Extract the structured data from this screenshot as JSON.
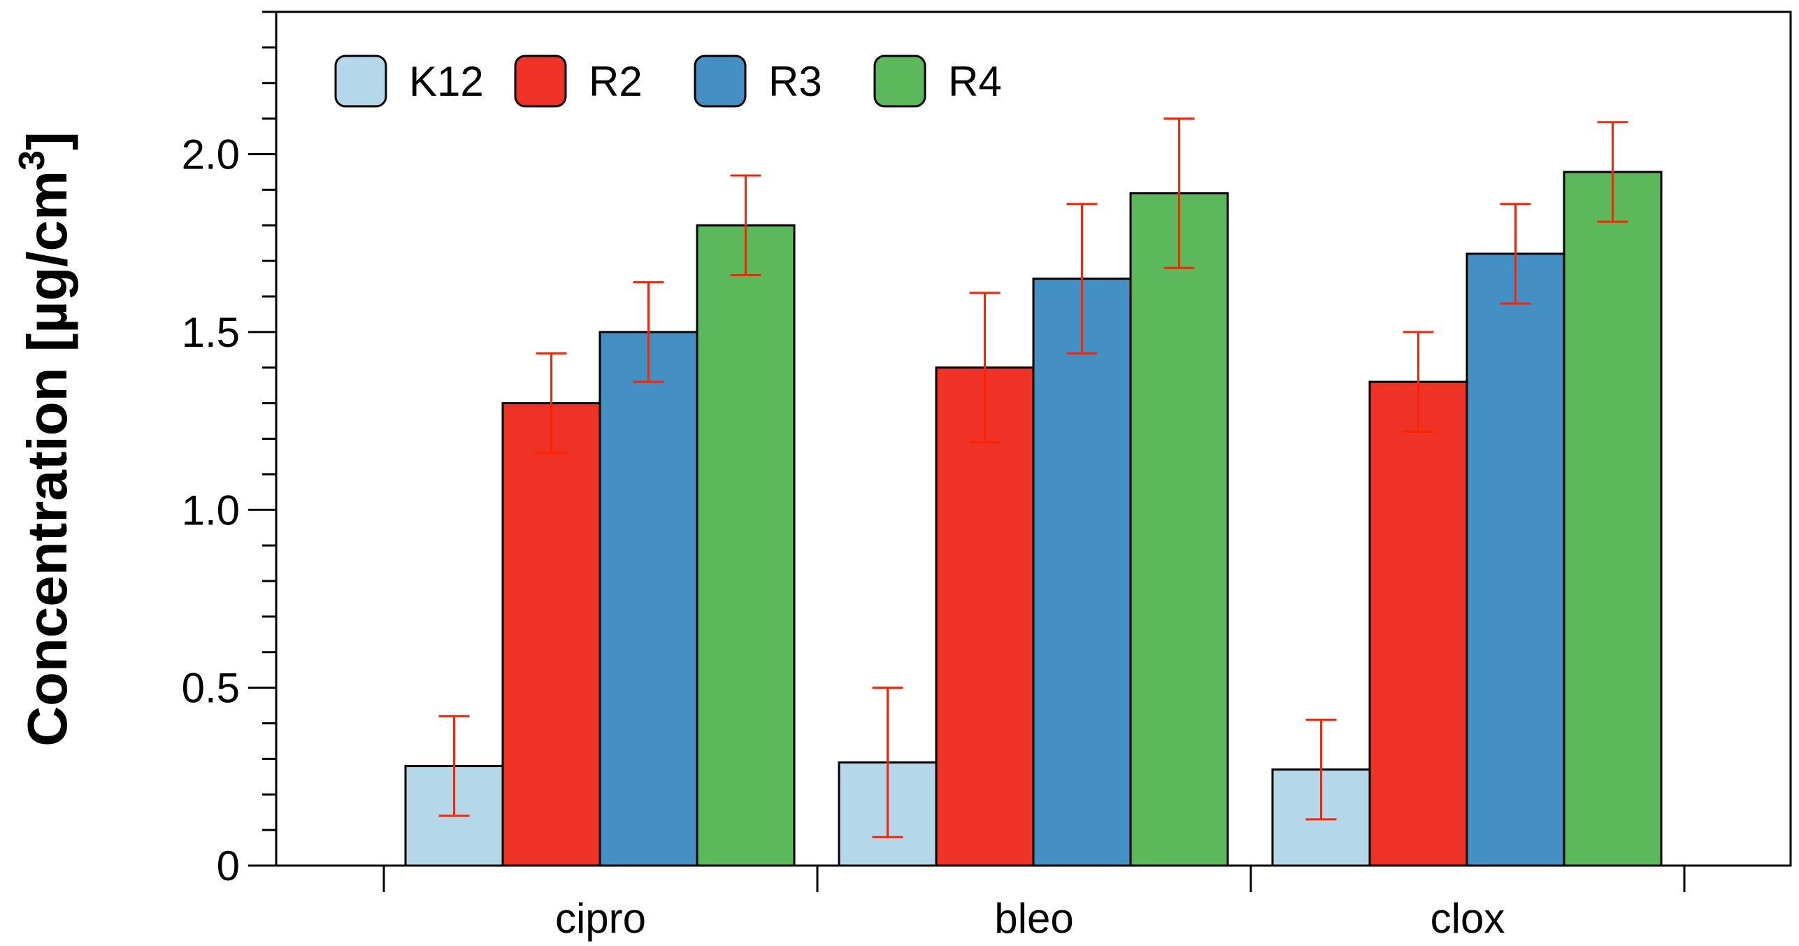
{
  "chart_data": {
    "type": "bar",
    "title": "",
    "xlabel": "",
    "ylabel": "Concentration [µg/cm³]",
    "ylabel_parts": {
      "main": "Concentration [µg/cm",
      "sup": "3",
      "end": "]"
    },
    "ylim": [
      0,
      2.4
    ],
    "yticks": [
      0,
      0.5,
      1.0,
      1.5,
      2.0
    ],
    "ytick_labels": [
      "0",
      "0.5",
      "1.0",
      "1.5",
      "2.0"
    ],
    "minor_tick_step": 0.1,
    "grid": false,
    "legend_placement": "top-left",
    "categories": [
      "cipro",
      "bleo",
      "clox"
    ],
    "error_bar_color": "#ff2200",
    "series": [
      {
        "name": "K12",
        "color": "#b4d7ea",
        "values": [
          0.28,
          0.29,
          0.27
        ],
        "err_low": [
          0.14,
          0.08,
          0.13
        ],
        "err_high": [
          0.42,
          0.5,
          0.41
        ]
      },
      {
        "name": "R2",
        "color": "#ee3226",
        "values": [
          1.3,
          1.4,
          1.36
        ],
        "err_low": [
          1.16,
          1.19,
          1.22
        ],
        "err_high": [
          1.44,
          1.61,
          1.5
        ]
      },
      {
        "name": "R3",
        "color": "#4490c4",
        "values": [
          1.5,
          1.65,
          1.72
        ],
        "err_low": [
          1.36,
          1.44,
          1.58
        ],
        "err_high": [
          1.64,
          1.86,
          1.86
        ]
      },
      {
        "name": "R4",
        "color": "#5bb95b",
        "values": [
          1.8,
          1.89,
          1.95
        ],
        "err_low": [
          1.66,
          1.68,
          1.81
        ],
        "err_high": [
          1.94,
          2.1,
          2.09
        ]
      }
    ]
  }
}
